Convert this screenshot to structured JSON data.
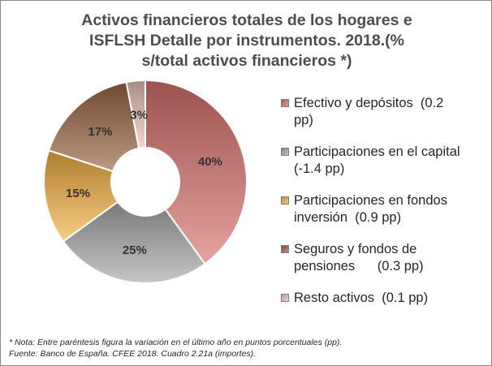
{
  "chart_data": {
    "type": "pie",
    "title_lines": [
      "Activos financieros totales de los hogares e",
      "ISFLSH Detalle por instrumentos. 2018.(%",
      "s/total activos financieros *)"
    ],
    "categories": [
      "Efectivo y depósitos",
      "Participaciones en el capital",
      "Participaciones en fondos inversión",
      "Seguros y fondos de pensiones",
      "Resto activos"
    ],
    "values": [
      40,
      25,
      15,
      17,
      3
    ],
    "value_labels": [
      "40%",
      "25%",
      "15%",
      "17%",
      "3%"
    ],
    "legend": [
      {
        "lines": [
          "Efectivo y depósitos  (0.2",
          "pp)"
        ],
        "color": "#d9726c"
      },
      {
        "lines": [
          "Participaciones en el capital",
          "(-1.4 pp)"
        ],
        "color": "#a8a8a8"
      },
      {
        "lines": [
          "Participaciones en fondos",
          "inversión  (0.9 pp)"
        ],
        "color": "#f4b041"
      },
      {
        "lines": [
          "Seguros y fondos de",
          "pensiones      (0.3 pp)"
        ],
        "color": "#9a6441"
      },
      {
        "lines": [
          "Resto activos  (0.1 pp)"
        ],
        "color": "#e9c3bd"
      }
    ],
    "legend_placement": "right",
    "colors": [
      "#d9726c",
      "#a8a8a8",
      "#f4b041",
      "#9a6441",
      "#e9c3bd"
    ],
    "donut": true
  },
  "notes": {
    "line1": "*  Nota: Entre paréntesis figura la variación en el último año en puntos porcentuales (pp).",
    "line2": "Fuente: Banco de España. CFEE 2018. Cuadro 2.21a (importes)."
  }
}
